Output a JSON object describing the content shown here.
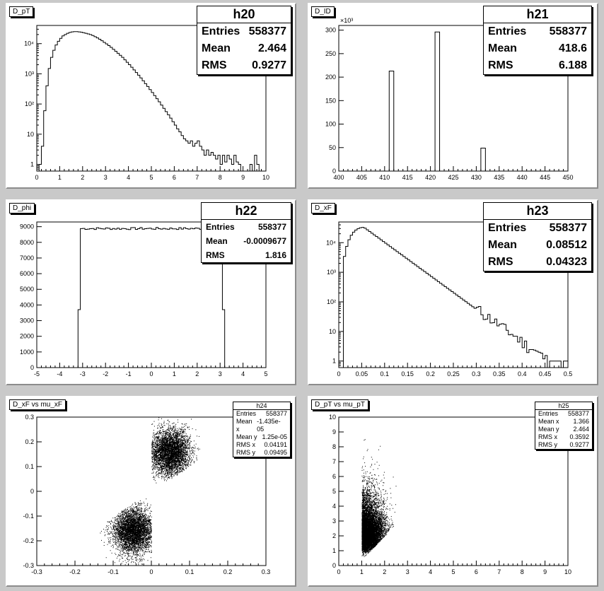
{
  "pads": [
    {
      "title": "D_pT",
      "stat_name": "h20",
      "stats": [
        [
          "Entries",
          "558377"
        ],
        [
          "Mean",
          "2.464"
        ],
        [
          "RMS",
          "0.9277"
        ]
      ]
    },
    {
      "title": "D_ID",
      "stat_name": "h21",
      "stats": [
        [
          "Entries",
          "558377"
        ],
        [
          "Mean",
          "418.6"
        ],
        [
          "RMS",
          "6.188"
        ]
      ]
    },
    {
      "title": "D_phi",
      "stat_name": "h22",
      "stats": [
        [
          "Entries",
          "558377"
        ],
        [
          "Mean",
          "-0.0009677"
        ],
        [
          "RMS",
          "1.816"
        ]
      ]
    },
    {
      "title": "D_xF",
      "stat_name": "h23",
      "stats": [
        [
          "Entries",
          "558377"
        ],
        [
          "Mean",
          "0.08512"
        ],
        [
          "RMS",
          "0.04323"
        ]
      ]
    },
    {
      "title": "D_xF vs mu_xF",
      "stat_name": "h24",
      "stats": [
        [
          "Entries",
          "558377"
        ],
        [
          "Mean x",
          "-1.435e-05"
        ],
        [
          "Mean y",
          "1.25e-05"
        ],
        [
          "RMS x",
          "0.04191"
        ],
        [
          "RMS y",
          "0.09495"
        ]
      ]
    },
    {
      "title": "D_pT vs mu_pT",
      "stat_name": "h25",
      "stats": [
        [
          "Entries",
          "558377"
        ],
        [
          "Mean x",
          "1.366"
        ],
        [
          "Mean y",
          "2.464"
        ],
        [
          "RMS x",
          "0.3592"
        ],
        [
          "RMS y",
          "0.9277"
        ]
      ]
    }
  ],
  "chart_data": [
    {
      "type": "bar",
      "name": "h20",
      "title": "D_pT",
      "log_y": true,
      "xlim": [
        0,
        10
      ],
      "ylim": [
        0.6,
        40000
      ],
      "x_ticks": [
        "0",
        "1",
        "2",
        "3",
        "4",
        "5",
        "6",
        "7",
        "8",
        "9",
        "10"
      ],
      "y_ticks": [
        {
          "v": 1,
          "label": "1"
        },
        {
          "v": 10,
          "label": "10"
        },
        {
          "v": 100,
          "label": "10²"
        },
        {
          "v": 1000,
          "label": "10³"
        },
        {
          "v": 10000,
          "label": "10⁴"
        }
      ],
      "bin_width": 0.1,
      "x": [
        0.15,
        0.25,
        0.35,
        0.45,
        0.55,
        0.65,
        0.75,
        0.85,
        0.95,
        1.05,
        1.15,
        1.25,
        1.35,
        1.45,
        1.55,
        1.65,
        1.75,
        1.85,
        1.95,
        2.05,
        2.15,
        2.25,
        2.35,
        2.45,
        2.55,
        2.65,
        2.75,
        2.85,
        2.95,
        3.05,
        3.15,
        3.25,
        3.35,
        3.45,
        3.55,
        3.65,
        3.75,
        3.85,
        3.95,
        4.05,
        4.15,
        4.25,
        4.35,
        4.45,
        4.55,
        4.65,
        4.75,
        4.85,
        4.95,
        5.05,
        5.15,
        5.25,
        5.35,
        5.45,
        5.55,
        5.65,
        5.75,
        5.85,
        5.95,
        6.05,
        6.15,
        6.25,
        6.35,
        6.45,
        6.55,
        6.65,
        6.75,
        6.85,
        6.95,
        7.05,
        7.15,
        7.25,
        7.35,
        7.45,
        7.55,
        7.65,
        7.75,
        7.85,
        7.95,
        8.05,
        8.15,
        8.25,
        8.35,
        8.45,
        8.55,
        8.65,
        8.75,
        8.85,
        8.95,
        9.05,
        9.15,
        9.25,
        9.35,
        9.45,
        9.55,
        9.65
      ],
      "values": [
        1,
        4,
        60,
        400,
        1500,
        3500,
        6000,
        9000,
        12000,
        15000,
        18000,
        20000,
        22000,
        23500,
        24500,
        25000,
        25000,
        24500,
        24000,
        23000,
        22000,
        21000,
        20000,
        18500,
        17000,
        15500,
        14000,
        12500,
        11000,
        9800,
        8600,
        7500,
        6500,
        5600,
        4800,
        4100,
        3500,
        2900,
        2400,
        2000,
        1650,
        1350,
        1100,
        900,
        730,
        590,
        470,
        380,
        300,
        240,
        190,
        150,
        118,
        92,
        72,
        56,
        44,
        34,
        26,
        20,
        15,
        12,
        9,
        7,
        6,
        5,
        6,
        4,
        5,
        6,
        4,
        3,
        2,
        3,
        2,
        2.5,
        2,
        1.5,
        2,
        1,
        2,
        1.2,
        2,
        1.5,
        1,
        2,
        1.2,
        1,
        0.5,
        0.5,
        0.5,
        0.5,
        1,
        0.5,
        2,
        1
      ]
    },
    {
      "type": "bar",
      "name": "h21",
      "title": "D_ID",
      "xlim": [
        400,
        450
      ],
      "ylim": [
        0,
        310000
      ],
      "y_exponent": "×10³",
      "x_ticks": [
        "400",
        "405",
        "410",
        "415",
        "420",
        "425",
        "430",
        "435",
        "440",
        "445",
        "450"
      ],
      "y_ticks": [
        {
          "v": 0,
          "label": "0"
        },
        {
          "v": 50000,
          "label": "50"
        },
        {
          "v": 100000,
          "label": "100"
        },
        {
          "v": 150000,
          "label": "150"
        },
        {
          "v": 200000,
          "label": "200"
        },
        {
          "v": 250000,
          "label": "250"
        },
        {
          "v": 300000,
          "label": "300"
        }
      ],
      "bin_width": 1,
      "x": [
        411.5,
        421.5,
        431.5
      ],
      "values": [
        213000,
        296000,
        49000
      ]
    },
    {
      "type": "bar",
      "name": "h22",
      "title": "D_phi",
      "xlim": [
        -5,
        5
      ],
      "ylim": [
        0,
        9300
      ],
      "x_ticks": [
        "-5",
        "-4",
        "-3",
        "-2",
        "-1",
        "0",
        "1",
        "2",
        "3",
        "4",
        "5"
      ],
      "y_ticks": [
        {
          "v": 0,
          "label": "0"
        },
        {
          "v": 1000,
          "label": "1000"
        },
        {
          "v": 2000,
          "label": "2000"
        },
        {
          "v": 3000,
          "label": "3000"
        },
        {
          "v": 4000,
          "label": "4000"
        },
        {
          "v": 5000,
          "label": "5000"
        },
        {
          "v": 6000,
          "label": "6000"
        },
        {
          "v": 7000,
          "label": "7000"
        },
        {
          "v": 8000,
          "label": "8000"
        },
        {
          "v": 9000,
          "label": "9000"
        }
      ],
      "flat": {
        "from": -3.1,
        "to": 3.1,
        "level": 8880,
        "edge_left": 3700,
        "edge_right": 3700
      }
    },
    {
      "type": "bar",
      "name": "h23",
      "title": "D_xF",
      "log_y": true,
      "xlim": [
        0,
        0.5
      ],
      "ylim": [
        0.6,
        50000
      ],
      "x_ticks": [
        "0",
        "0.05",
        "0.1",
        "0.15",
        "0.2",
        "0.25",
        "0.3",
        "0.35",
        "0.4",
        "0.45",
        "0.5"
      ],
      "y_ticks": [
        {
          "v": 1,
          "label": "1"
        },
        {
          "v": 10,
          "label": "10"
        },
        {
          "v": 100,
          "label": "10²"
        },
        {
          "v": 1000,
          "label": "10³"
        },
        {
          "v": 10000,
          "label": "10⁴"
        }
      ],
      "bin_width": 0.005,
      "peak_x": 0.055,
      "peak_value": 33000,
      "end_x": 0.5
    },
    {
      "type": "scatter",
      "name": "h24",
      "title": "D_xF vs mu_xF",
      "xlim": [
        -0.3,
        0.3
      ],
      "ylim": [
        -0.3,
        0.3
      ],
      "x_ticks": [
        "-0.3",
        "-0.2",
        "-0.1",
        "0",
        "0.1",
        "0.2",
        "0.3"
      ],
      "y_ticks": [
        {
          "v": -0.3,
          "label": "-0.3"
        },
        {
          "v": -0.2,
          "label": "-0.2"
        },
        {
          "v": -0.1,
          "label": "-0.1"
        },
        {
          "v": 0,
          "label": "0"
        },
        {
          "v": 0.1,
          "label": "0.1"
        },
        {
          "v": 0.2,
          "label": "0.2"
        },
        {
          "v": 0.3,
          "label": "0.3"
        }
      ]
    },
    {
      "type": "scatter",
      "name": "h25",
      "title": "D_pT vs mu_pT",
      "xlim": [
        0,
        10
      ],
      "ylim": [
        0,
        10
      ],
      "x_ticks": [
        "0",
        "1",
        "2",
        "3",
        "4",
        "5",
        "6",
        "7",
        "8",
        "9",
        "10"
      ],
      "y_ticks": [
        {
          "v": 0,
          "label": "0"
        },
        {
          "v": 1,
          "label": "1"
        },
        {
          "v": 2,
          "label": "2"
        },
        {
          "v": 3,
          "label": "3"
        },
        {
          "v": 4,
          "label": "4"
        },
        {
          "v": 5,
          "label": "5"
        },
        {
          "v": 6,
          "label": "6"
        },
        {
          "v": 7,
          "label": "7"
        },
        {
          "v": 8,
          "label": "8"
        },
        {
          "v": 9,
          "label": "9"
        },
        {
          "v": 10,
          "label": "10"
        }
      ]
    }
  ]
}
